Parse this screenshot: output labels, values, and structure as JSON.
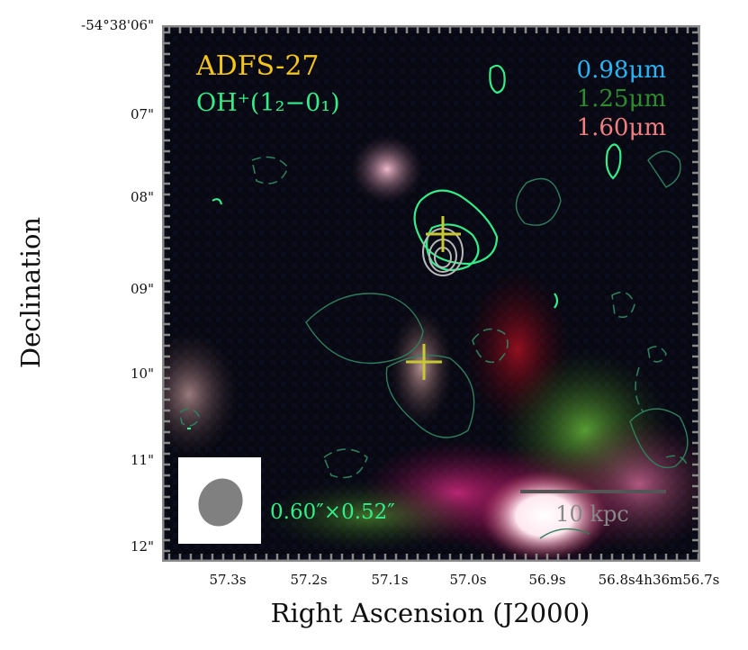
{
  "image": {
    "object_name": "ADFS-27",
    "line_label": "OH⁺(1₂−0₁)",
    "bands": [
      {
        "label": "0.98μm",
        "color": "#29b6f6"
      },
      {
        "label": "1.25μm",
        "color": "#2e8b2e"
      },
      {
        "label": "1.60μm",
        "color": "#f08080"
      }
    ],
    "beam_label": "0.60″×0.52″",
    "scale_bar_label": "10 kpc",
    "colors": {
      "title": "#f5c518",
      "line": "#33ee88",
      "contour_neg": "#2e7d5b",
      "contour_grey": "#b8b8b8",
      "cross": "#c8c832",
      "scale_bar": "#555555"
    }
  },
  "axes": {
    "xlabel": "Right Ascension (J2000)",
    "ylabel": "Declination",
    "x_ticks": [
      "57.3s",
      "57.2s",
      "57.1s",
      "57.0s",
      "56.9s",
      "56.8s4h36m56.7s"
    ],
    "y_ticks": [
      "-54°38'06\"",
      "07\"",
      "08\"",
      "09\"",
      "10\"",
      "11\"",
      "12\""
    ]
  }
}
